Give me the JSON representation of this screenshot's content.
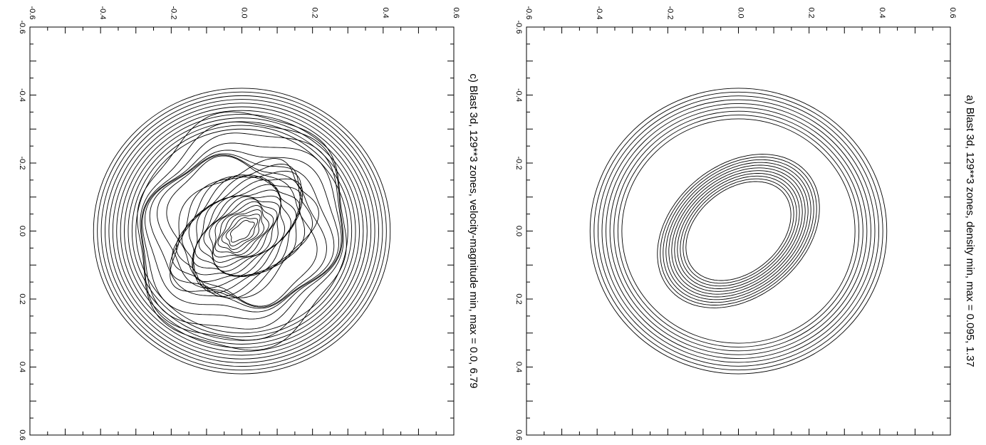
{
  "chart_data": [
    {
      "type": "contour",
      "panel": "a",
      "title": "a) Blast 3d, 129**3 zones, density min, max = 0.095, 1.37",
      "field": "density",
      "min": 0.095,
      "max": 1.37,
      "xlim": [
        -0.6,
        0.6
      ],
      "ylim": [
        -0.6,
        0.6
      ],
      "x_ticks": [
        "-0.6",
        "-0.4",
        "-0.2",
        "0.0",
        "0.2",
        "0.4",
        "0.6"
      ],
      "y_ticks": [
        "0.6",
        "0.4",
        "0.2",
        "0.0",
        "-0.2",
        "-0.4",
        "-0.6"
      ],
      "grid": false,
      "legend": "none",
      "orientation": "rotated 90 degrees clockwise",
      "contours": {
        "outer_ring": {
          "count": 9,
          "center": [
            0.0,
            0.0
          ],
          "r_min": 0.33,
          "r_max": 0.42
        },
        "inner_ellipse": {
          "count": 11,
          "center": [
            0.0,
            0.0
          ],
          "semi_major": [
            0.17,
            0.26
          ],
          "semi_minor": [
            0.12,
            0.19
          ],
          "tilt_deg": -40
        }
      }
    },
    {
      "type": "contour",
      "panel": "c",
      "title": "c) Blast 3d, 129**3 zones, velocity-magnitude min, max = 0.0, 6.79",
      "field": "velocity-magnitude",
      "min": 0.0,
      "max": 6.79,
      "xlim": [
        -0.6,
        0.6
      ],
      "ylim": [
        -0.6,
        0.6
      ],
      "x_ticks": [
        "-0.6",
        "-0.4",
        "-0.2",
        "0.0",
        "0.2",
        "0.4",
        "0.6"
      ],
      "y_ticks": [
        "0.6",
        "0.4",
        "0.2",
        "0.0",
        "-0.2",
        "-0.4",
        "-0.6"
      ],
      "grid": false,
      "legend": "none",
      "orientation": "rotated 90 degrees clockwise",
      "contours": {
        "outer_ring": {
          "count": 12,
          "center": [
            0.0,
            0.0
          ],
          "r_min": 0.3,
          "r_max": 0.42
        },
        "wavy_bands": {
          "count": 8,
          "center": [
            0.0,
            0.0
          ],
          "r_min": 0.2,
          "r_max": 0.32
        },
        "inner_ellipse": {
          "count": 18,
          "center": [
            0.0,
            0.0
          ],
          "semi_major": [
            0.04,
            0.23
          ],
          "semi_minor": [
            0.02,
            0.16
          ],
          "tilt_deg": -40
        }
      }
    }
  ]
}
